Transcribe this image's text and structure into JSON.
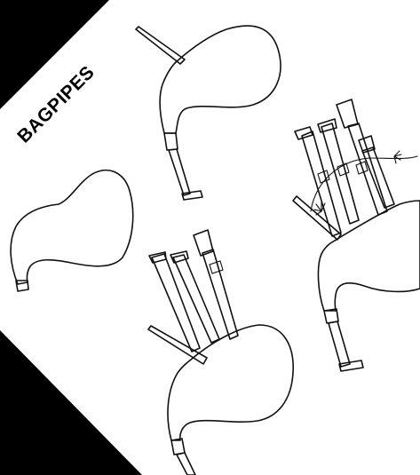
{
  "page": {
    "title": "BAGPIPES"
  },
  "colors": {
    "background": "#000000",
    "paper": "#ffffff",
    "ink": "#111111"
  },
  "illustrations": [
    {
      "name": "bag-outline"
    },
    {
      "name": "bag-with-blowpipe"
    },
    {
      "name": "bagpipe-with-drones-lower"
    },
    {
      "name": "bagpipe-with-drones-right"
    }
  ]
}
